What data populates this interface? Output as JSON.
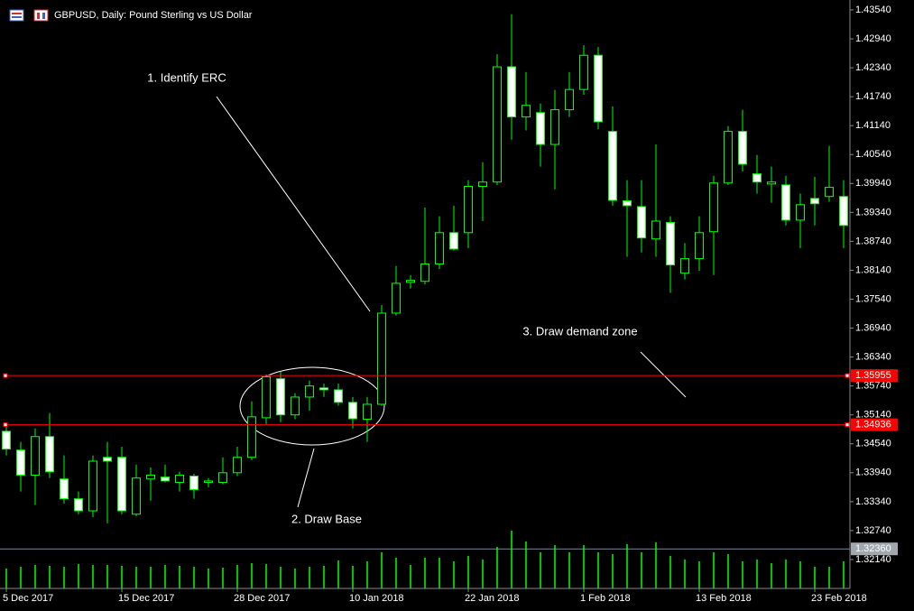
{
  "chart_data": {
    "type": "candlestick",
    "title": "GBPUSD, Daily:  Pound Sterling vs US Dollar",
    "categories": [
      "5 Dec 2017",
      null,
      null,
      null,
      null,
      null,
      null,
      null,
      "15 Dec 2017",
      null,
      null,
      null,
      null,
      null,
      null,
      null,
      "28 Dec 2017",
      null,
      null,
      null,
      null,
      null,
      null,
      null,
      "10 Jan 2018",
      null,
      null,
      null,
      null,
      null,
      null,
      null,
      "22 Jan 2018",
      null,
      null,
      null,
      null,
      null,
      null,
      null,
      "1 Feb 2018",
      null,
      null,
      null,
      null,
      null,
      null,
      null,
      "13 Feb 2018",
      null,
      null,
      null,
      null,
      null,
      null,
      null,
      "23 Feb 2018",
      null,
      null
    ],
    "open": [
      1.348,
      1.3441,
      1.3389,
      1.3469,
      1.3381,
      1.334,
      1.3315,
      1.3426,
      1.3426,
      1.3308,
      1.3381,
      1.3385,
      1.3374,
      1.3387,
      1.3374,
      1.3374,
      1.3394,
      1.3426,
      1.3508,
      1.3589,
      1.3514,
      1.3551,
      1.357,
      1.3566,
      1.354,
      1.3505,
      1.3536,
      1.3725,
      1.3789,
      1.3791,
      1.3827,
      1.3892,
      1.3892,
      1.3988,
      1.3997,
      1.4236,
      1.4132,
      1.4141,
      1.4075,
      1.4147,
      1.4189,
      1.426,
      1.4102,
      1.3958,
      1.3946,
      1.3879,
      1.3913,
      1.3808,
      1.3838,
      1.3894,
      1.3995,
      1.4102,
      1.4014,
      1.3993,
      1.3991,
      1.3918,
      1.3963,
      1.3967,
      1.3967
    ],
    "high": [
      1.3495,
      1.3458,
      1.3486,
      1.3518,
      1.343,
      1.3355,
      1.343,
      1.3458,
      1.3448,
      1.3411,
      1.3405,
      1.3411,
      1.3396,
      1.3392,
      1.3383,
      1.3426,
      1.3448,
      1.3542,
      1.3598,
      1.3604,
      1.3559,
      1.3585,
      1.3579,
      1.3579,
      1.3551,
      1.3551,
      1.3742,
      1.3823,
      1.3804,
      1.3944,
      1.3926,
      1.3948,
      1.4001,
      1.4038,
      1.4262,
      1.4345,
      1.4225,
      1.416,
      1.4188,
      1.4225,
      1.4281,
      1.4277,
      1.4154,
      1.4001,
      1.4001,
      1.4075,
      1.3926,
      1.387,
      1.3926,
      1.401,
      1.4113,
      1.4147,
      1.4053,
      1.4029,
      1.401,
      1.3973,
      1.4008,
      1.4072,
      1.4001
    ],
    "low": [
      1.343,
      1.3355,
      1.3327,
      1.3383,
      1.333,
      1.3308,
      1.3302,
      1.3289,
      1.3308,
      1.3304,
      1.3336,
      1.3374,
      1.3355,
      1.334,
      1.3364,
      1.337,
      1.3387,
      1.342,
      1.3495,
      1.3499,
      1.3505,
      1.3523,
      1.3551,
      1.3533,
      1.3486,
      1.3458,
      1.3533,
      1.372,
      1.3776,
      1.3785,
      1.3817,
      1.3855,
      1.386,
      1.3916,
      1.3991,
      1.4085,
      1.4104,
      1.4029,
      1.3982,
      1.4132,
      1.4178,
      1.4107,
      1.3948,
      1.3842,
      1.3851,
      1.3842,
      1.3767,
      1.3795,
      1.3813,
      1.3804,
      1.3991,
      1.4019,
      1.3973,
      1.3954,
      1.3907,
      1.386,
      1.3907,
      1.3956,
      1.386
    ],
    "close": [
      1.3443,
      1.3389,
      1.3469,
      1.3396,
      1.334,
      1.3315,
      1.3418,
      1.3418,
      1.3315,
      1.3383,
      1.3389,
      1.3377,
      1.3389,
      1.3359,
      1.3377,
      1.3394,
      1.3426,
      1.351,
      1.3593,
      1.3514,
      1.3551,
      1.3574,
      1.3566,
      1.354,
      1.3506,
      1.3536,
      1.3725,
      1.3787,
      1.3793,
      1.3827,
      1.3892,
      1.3858,
      1.3988,
      1.3997,
      1.4236,
      1.4132,
      1.4156,
      1.4075,
      1.4147,
      1.4189,
      1.426,
      1.4122,
      1.3959,
      1.3948,
      1.3881,
      1.3916,
      1.3825,
      1.3838,
      1.3892,
      1.3995,
      1.4102,
      1.4034,
      1.3997,
      1.3997,
      1.3918,
      1.395,
      1.3952,
      1.3986,
      1.3907
    ],
    "volume": [
      22,
      24,
      26,
      25,
      24,
      27,
      26,
      26,
      25,
      24,
      24,
      26,
      25,
      24,
      22,
      23,
      26,
      28,
      27,
      24,
      22,
      24,
      25,
      31,
      25,
      30,
      40,
      34,
      26,
      34,
      34,
      30,
      36,
      32,
      46,
      64,
      52,
      40,
      48,
      40,
      48,
      40,
      38,
      49,
      40,
      51,
      36,
      32,
      30,
      40,
      38,
      30,
      32,
      28,
      32,
      30,
      24,
      24,
      30
    ],
    "volume_lim": [
      0,
      100
    ],
    "up_color": "#000000",
    "down_color": "#ffffff",
    "wick_color": "#00ff00",
    "volume_color": "#00ff00",
    "ylim": [
      1.3154,
      1.43746
    ],
    "yticks": [
      {
        "value": 1.4354,
        "label": "1.43540"
      },
      {
        "value": 1.4294,
        "label": "1.42940"
      },
      {
        "value": 1.4234,
        "label": "1.42340"
      },
      {
        "value": 1.4174,
        "label": "1.41740"
      },
      {
        "value": 1.4114,
        "label": "1.41140"
      },
      {
        "value": 1.4054,
        "label": "1.40540"
      },
      {
        "value": 1.3994,
        "label": "1.39940"
      },
      {
        "value": 1.3934,
        "label": "1.39340"
      },
      {
        "value": 1.3874,
        "label": "1.38740"
      },
      {
        "value": 1.3814,
        "label": "1.38140"
      },
      {
        "value": 1.3754,
        "label": "1.37540"
      },
      {
        "value": 1.3694,
        "label": "1.36940"
      },
      {
        "value": 1.3634,
        "label": "1.36340"
      },
      {
        "value": 1.3574,
        "label": "1.35740"
      },
      {
        "value": 1.3514,
        "label": "1.35140"
      },
      {
        "value": 1.3454,
        "label": "1.34540"
      },
      {
        "value": 1.3394,
        "label": "1.33940"
      },
      {
        "value": 1.3334,
        "label": "1.33340"
      },
      {
        "value": 1.3274,
        "label": "1.32740"
      },
      {
        "value": 1.3214,
        "label": "1.32140"
      }
    ],
    "hlines": [
      {
        "value": 1.35955,
        "color": "#ff0000"
      },
      {
        "value": 1.34936,
        "color": "#ff0000"
      }
    ],
    "price_line": {
      "value": 1.3236,
      "label": "1.32360",
      "color": "#778899"
    },
    "annotations": [
      "1. Identify ERC",
      "2. Draw Base",
      "3. Draw demand zone"
    ]
  }
}
